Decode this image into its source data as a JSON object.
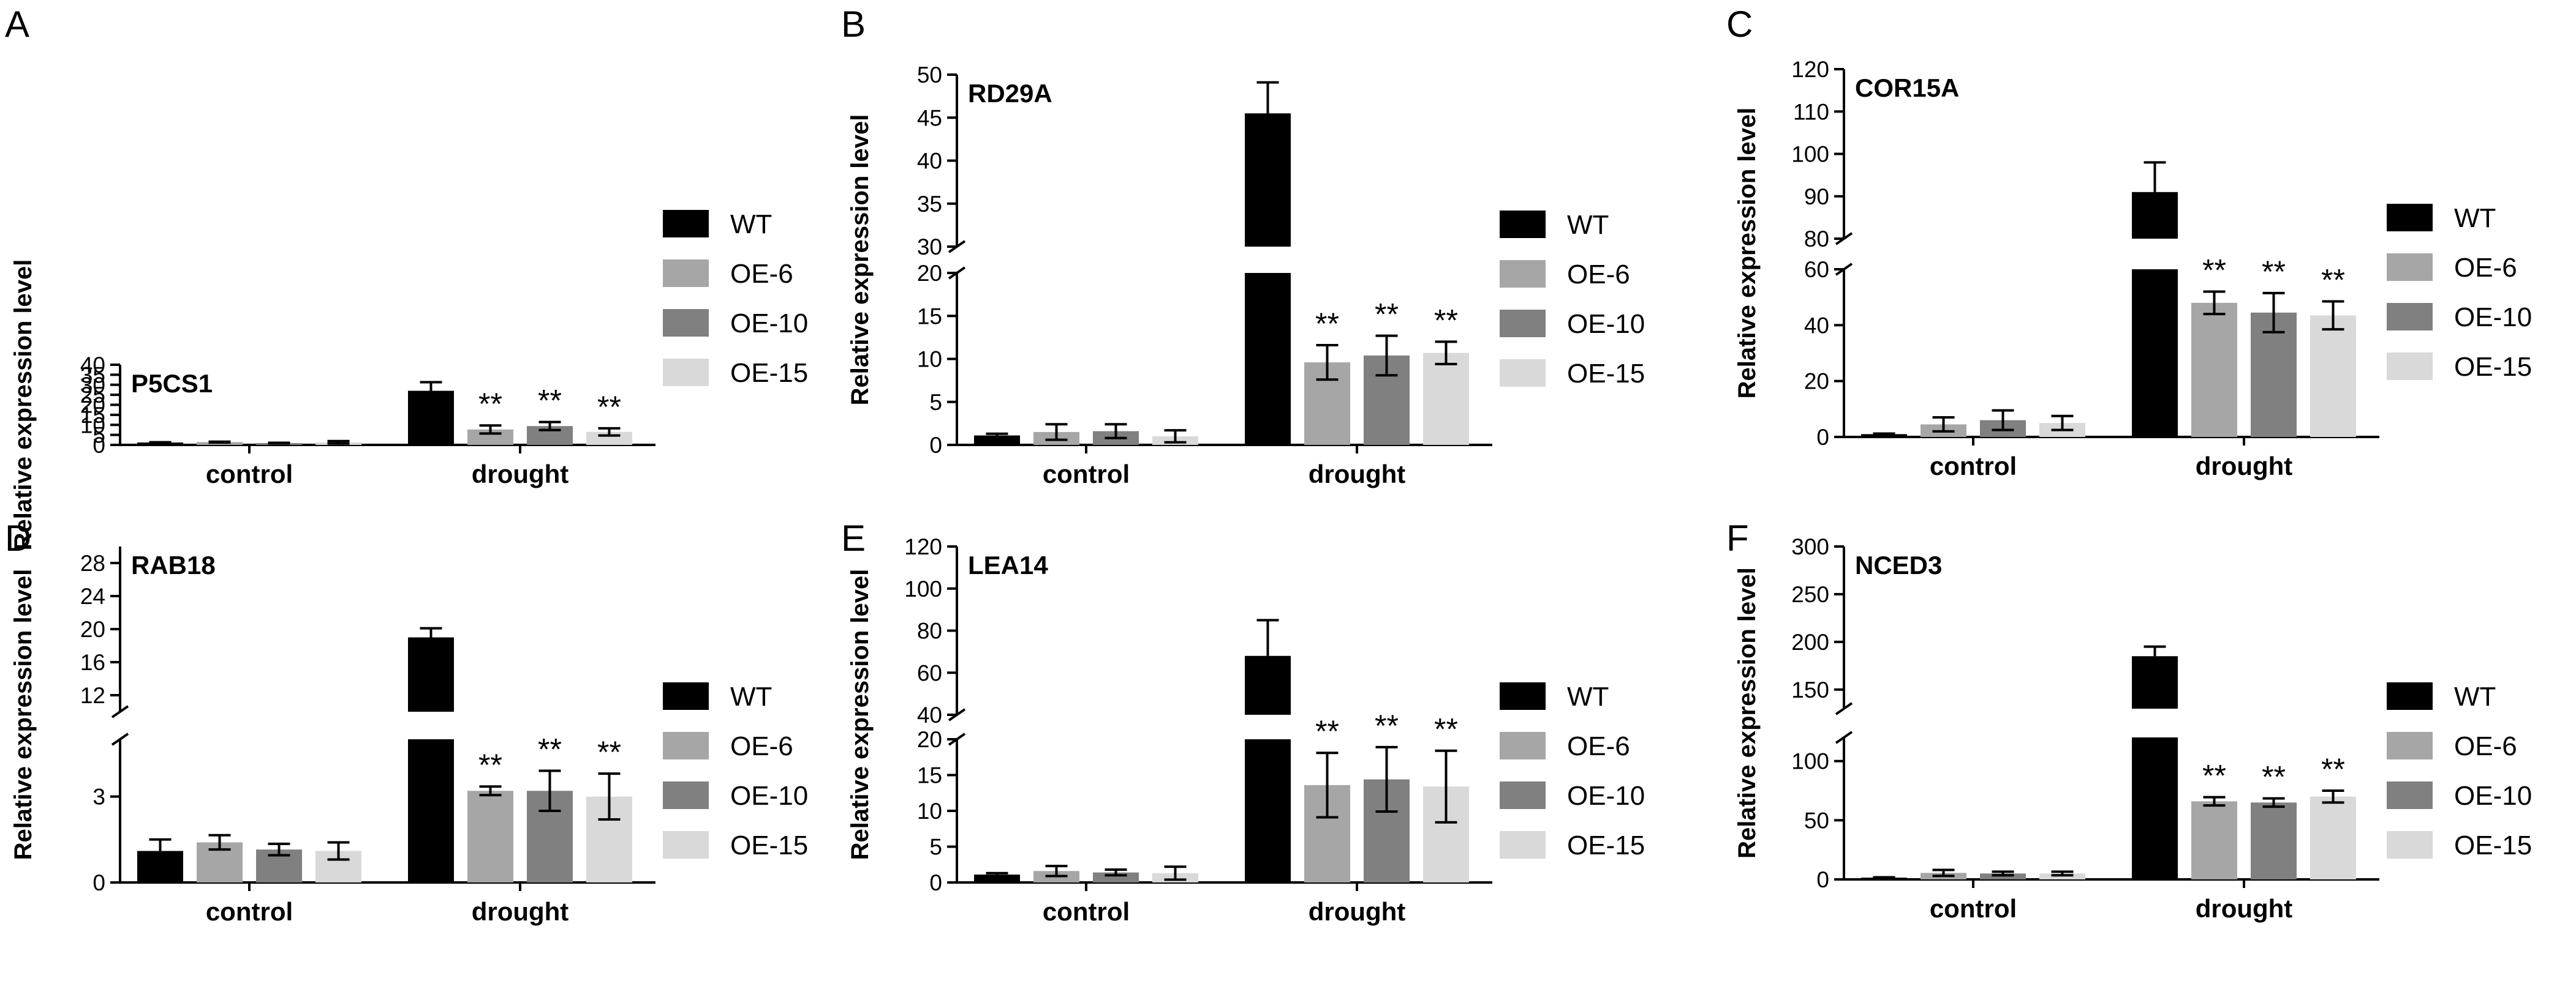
{
  "chart_data": [
    {
      "type": "bar",
      "panel": "A",
      "title": "P5CS1",
      "ylabel": "Relative expression level",
      "categories": [
        "control",
        "drought"
      ],
      "legend": [
        "WT",
        "OE-6",
        "OE-10",
        "OE-15"
      ],
      "series": [
        {
          "name": "WT",
          "color": "#000000",
          "values": [
            1.2,
            27.0
          ],
          "errors": [
            0.15,
            4.3
          ],
          "sig": [
            "",
            ""
          ]
        },
        {
          "name": "OE-6",
          "color": "#a6a6a6",
          "values": [
            1.4,
            7.7
          ],
          "errors": [
            0.2,
            2.0
          ],
          "sig": [
            "",
            "**"
          ]
        },
        {
          "name": "OE-10",
          "color": "#808080",
          "values": [
            0.9,
            9.4
          ],
          "errors": [
            0.15,
            2.0
          ],
          "sig": [
            "",
            "**"
          ]
        },
        {
          "name": "OE-15",
          "color": "#d9d9d9",
          "values": [
            1.3,
            6.5
          ],
          "errors": [
            0.6,
            1.8
          ],
          "sig": [
            "",
            "**"
          ]
        }
      ],
      "axis": {
        "ticks": [
          0,
          5,
          10,
          15,
          20,
          25,
          30,
          35,
          40
        ],
        "ylim": [
          0,
          40
        ],
        "break": null
      }
    },
    {
      "type": "bar",
      "panel": "B",
      "title": "RD29A",
      "ylabel": "Relative expression level",
      "categories": [
        "control",
        "drought"
      ],
      "legend": [
        "WT",
        "OE-6",
        "OE-10",
        "OE-15"
      ],
      "series": [
        {
          "name": "WT",
          "color": "#000000",
          "values": [
            1.1,
            45.5
          ],
          "errors": [
            0.2,
            3.6
          ],
          "sig": [
            "",
            ""
          ]
        },
        {
          "name": "OE-6",
          "color": "#a6a6a6",
          "values": [
            1.5,
            9.6
          ],
          "errors": [
            0.9,
            2.0
          ],
          "sig": [
            "",
            "**"
          ]
        },
        {
          "name": "OE-10",
          "color": "#808080",
          "values": [
            1.6,
            10.4
          ],
          "errors": [
            0.8,
            2.3
          ],
          "sig": [
            "",
            "**"
          ]
        },
        {
          "name": "OE-15",
          "color": "#d9d9d9",
          "values": [
            1.0,
            10.7
          ],
          "errors": [
            0.7,
            1.3
          ],
          "sig": [
            "",
            "**"
          ]
        }
      ],
      "axis": {
        "lower": {
          "range": [
            0,
            20
          ],
          "ticks": [
            0,
            5,
            10,
            15,
            20
          ]
        },
        "upper": {
          "range": [
            30,
            50
          ],
          "ticks": [
            30,
            35,
            40,
            45,
            50
          ]
        }
      }
    },
    {
      "type": "bar",
      "panel": "C",
      "title": "COR15A",
      "ylabel": "Relative expression level",
      "categories": [
        "control",
        "drought"
      ],
      "legend": [
        "WT",
        "OE-6",
        "OE-10",
        "OE-15"
      ],
      "series": [
        {
          "name": "WT",
          "color": "#000000",
          "values": [
            1.0,
            91.0
          ],
          "errors": [
            0.2,
            7.0
          ],
          "sig": [
            "",
            ""
          ]
        },
        {
          "name": "OE-6",
          "color": "#a6a6a6",
          "values": [
            4.5,
            48.0
          ],
          "errors": [
            2.5,
            4.0
          ],
          "sig": [
            "",
            "**"
          ]
        },
        {
          "name": "OE-10",
          "color": "#808080",
          "values": [
            6.0,
            44.5
          ],
          "errors": [
            3.5,
            7.0
          ],
          "sig": [
            "",
            "**"
          ]
        },
        {
          "name": "OE-15",
          "color": "#d9d9d9",
          "values": [
            5.0,
            43.5
          ],
          "errors": [
            2.5,
            5.0
          ],
          "sig": [
            "",
            "**"
          ]
        }
      ],
      "axis": {
        "lower": {
          "range": [
            0,
            60
          ],
          "ticks": [
            0,
            20,
            40,
            60
          ]
        },
        "upper": {
          "range": [
            80,
            120
          ],
          "ticks": [
            80,
            90,
            100,
            110,
            120
          ]
        }
      }
    },
    {
      "type": "bar",
      "panel": "D",
      "title": "RAB18",
      "ylabel": "Relative expression level",
      "categories": [
        "control",
        "drought"
      ],
      "legend": [
        "WT",
        "OE-6",
        "OE-10",
        "OE-15"
      ],
      "series": [
        {
          "name": "WT",
          "color": "#000000",
          "values": [
            1.1,
            19.0
          ],
          "errors": [
            0.4,
            1.1
          ],
          "sig": [
            "",
            ""
          ]
        },
        {
          "name": "OE-6",
          "color": "#a6a6a6",
          "values": [
            1.4,
            3.2
          ],
          "errors": [
            0.25,
            0.15
          ],
          "sig": [
            "",
            "**"
          ]
        },
        {
          "name": "OE-10",
          "color": "#808080",
          "values": [
            1.15,
            3.2
          ],
          "errors": [
            0.2,
            0.7
          ],
          "sig": [
            "",
            "**"
          ]
        },
        {
          "name": "OE-15",
          "color": "#d9d9d9",
          "values": [
            1.1,
            3.0
          ],
          "errors": [
            0.3,
            0.8
          ],
          "sig": [
            "",
            "**"
          ]
        }
      ],
      "axis": {
        "lower": {
          "range": [
            0,
            5
          ],
          "ticks": [
            0,
            3
          ]
        },
        "upper": {
          "range": [
            10,
            30
          ],
          "ticks": [
            12,
            16,
            20,
            24,
            28
          ]
        }
      }
    },
    {
      "type": "bar",
      "panel": "E",
      "title": "LEA14",
      "ylabel": "Relative expression level",
      "categories": [
        "control",
        "drought"
      ],
      "legend": [
        "WT",
        "OE-6",
        "OE-10",
        "OE-15"
      ],
      "series": [
        {
          "name": "WT",
          "color": "#000000",
          "values": [
            1.1,
            68.0
          ],
          "errors": [
            0.2,
            17.0
          ],
          "sig": [
            "",
            ""
          ]
        },
        {
          "name": "OE-6",
          "color": "#a6a6a6",
          "values": [
            1.6,
            13.6
          ],
          "errors": [
            0.7,
            4.5
          ],
          "sig": [
            "",
            "**"
          ]
        },
        {
          "name": "OE-10",
          "color": "#808080",
          "values": [
            1.4,
            14.4
          ],
          "errors": [
            0.4,
            4.5
          ],
          "sig": [
            "",
            "**"
          ]
        },
        {
          "name": "OE-15",
          "color": "#d9d9d9",
          "values": [
            1.3,
            13.4
          ],
          "errors": [
            0.9,
            5.0
          ],
          "sig": [
            "",
            "**"
          ]
        }
      ],
      "axis": {
        "lower": {
          "range": [
            0,
            20
          ],
          "ticks": [
            0,
            5,
            10,
            15,
            20
          ]
        },
        "upper": {
          "range": [
            40,
            120
          ],
          "ticks": [
            40,
            60,
            80,
            100,
            120
          ]
        }
      }
    },
    {
      "type": "bar",
      "panel": "F",
      "title": "NCED3",
      "ylabel": "Relative expression level",
      "categories": [
        "control",
        "drought"
      ],
      "legend": [
        "WT",
        "OE-6",
        "OE-10",
        "OE-15"
      ],
      "series": [
        {
          "name": "WT",
          "color": "#000000",
          "values": [
            1.5,
            185.0
          ],
          "errors": [
            0.3,
            10.0
          ],
          "sig": [
            "",
            ""
          ]
        },
        {
          "name": "OE-6",
          "color": "#a6a6a6",
          "values": [
            5.5,
            66.0
          ],
          "errors": [
            2.5,
            3.5
          ],
          "sig": [
            "",
            "**"
          ]
        },
        {
          "name": "OE-10",
          "color": "#808080",
          "values": [
            5.0,
            65.0
          ],
          "errors": [
            1.5,
            3.5
          ],
          "sig": [
            "",
            "**"
          ]
        },
        {
          "name": "OE-15",
          "color": "#d9d9d9",
          "values": [
            5.0,
            70.0
          ],
          "errors": [
            1.5,
            5.0
          ],
          "sig": [
            "",
            "**"
          ]
        }
      ],
      "axis": {
        "lower": {
          "range": [
            0,
            120
          ],
          "ticks": [
            0,
            50,
            100
          ]
        },
        "upper": {
          "range": [
            130,
            300
          ],
          "ticks": [
            150,
            200,
            250,
            300
          ]
        }
      }
    }
  ]
}
